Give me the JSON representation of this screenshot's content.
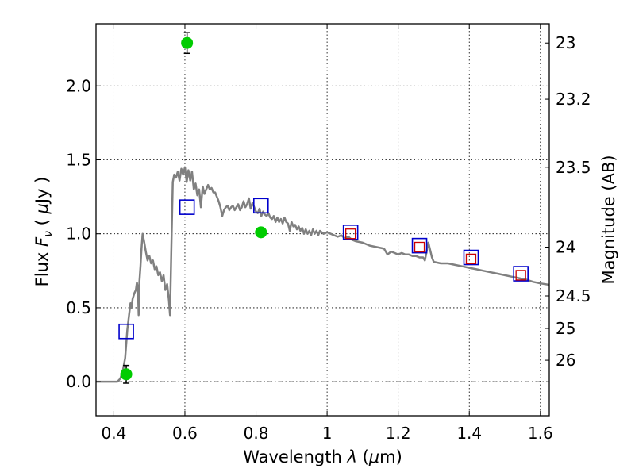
{
  "chart_data": {
    "type": "scatter",
    "xlabel": "Wavelength  λ (μm)",
    "ylabel": "Flux  F_ν  ( μJy )",
    "ylabel_parts": {
      "pre": "Flux  ",
      "f": "F",
      "nu": "ν",
      "mid": "  ( ",
      "mu": "μ",
      "post": "Jy )"
    },
    "xlabel_parts": {
      "pre": "Wavelength  ",
      "lambda": "λ",
      "mid": " (",
      "mu": "μ",
      "post": "m)"
    },
    "y2label": "Magnitude (AB)",
    "xlim": [
      0.35,
      1.625
    ],
    "ylim": [
      -0.23,
      2.42
    ],
    "xticks": [
      0.4,
      0.6,
      0.8,
      1.0,
      1.2,
      1.4,
      1.6
    ],
    "xtick_labels": [
      "0.4",
      "0.6",
      "0.8",
      "1",
      "1.2",
      "1.4",
      "1.6"
    ],
    "yticks": [
      0.0,
      0.5,
      1.0,
      1.5,
      2.0
    ],
    "ytick_labels": [
      "0.0",
      "0.5",
      "1.0",
      "1.5",
      "2.0"
    ],
    "mag_ticks": [
      {
        "label": "23",
        "flux": 2.29
      },
      {
        "label": "23.2",
        "flux": 1.91
      },
      {
        "label": "23.5",
        "flux": 1.45
      },
      {
        "label": "24",
        "flux": 0.91
      },
      {
        "label": "24.5",
        "flux": 0.58
      },
      {
        "label": "25",
        "flux": 0.36
      },
      {
        "label": "26",
        "flux": 0.145
      }
    ],
    "grid": true,
    "zero_line": true,
    "model_sed": {
      "name": "",
      "color": "#808080",
      "points": [
        [
          0.35,
          0.0
        ],
        [
          0.41,
          0.0
        ],
        [
          0.418,
          0.02
        ],
        [
          0.425,
          0.07
        ],
        [
          0.432,
          0.16
        ],
        [
          0.438,
          0.35
        ],
        [
          0.443,
          0.45
        ],
        [
          0.447,
          0.53
        ],
        [
          0.45,
          0.5
        ],
        [
          0.453,
          0.56
        ],
        [
          0.458,
          0.6
        ],
        [
          0.462,
          0.62
        ],
        [
          0.465,
          0.67
        ],
        [
          0.468,
          0.63
        ],
        [
          0.47,
          0.45
        ],
        [
          0.472,
          0.67
        ],
        [
          0.475,
          0.78
        ],
        [
          0.478,
          0.9
        ],
        [
          0.481,
          1.0
        ],
        [
          0.485,
          0.95
        ],
        [
          0.49,
          0.88
        ],
        [
          0.495,
          0.82
        ],
        [
          0.5,
          0.85
        ],
        [
          0.505,
          0.8
        ],
        [
          0.51,
          0.82
        ],
        [
          0.515,
          0.76
        ],
        [
          0.52,
          0.78
        ],
        [
          0.525,
          0.72
        ],
        [
          0.53,
          0.74
        ],
        [
          0.535,
          0.68
        ],
        [
          0.54,
          0.72
        ],
        [
          0.545,
          0.62
        ],
        [
          0.55,
          0.66
        ],
        [
          0.555,
          0.55
        ],
        [
          0.558,
          0.45
        ],
        [
          0.562,
          0.9
        ],
        [
          0.566,
          1.35
        ],
        [
          0.57,
          1.4
        ],
        [
          0.575,
          1.38
        ],
        [
          0.58,
          1.42
        ],
        [
          0.585,
          1.36
        ],
        [
          0.59,
          1.44
        ],
        [
          0.595,
          1.4
        ],
        [
          0.6,
          1.45
        ],
        [
          0.605,
          1.35
        ],
        [
          0.61,
          1.43
        ],
        [
          0.615,
          1.36
        ],
        [
          0.62,
          1.42
        ],
        [
          0.625,
          1.3
        ],
        [
          0.63,
          1.34
        ],
        [
          0.635,
          1.26
        ],
        [
          0.64,
          1.3
        ],
        [
          0.645,
          1.18
        ],
        [
          0.65,
          1.32
        ],
        [
          0.655,
          1.27
        ],
        [
          0.66,
          1.3
        ],
        [
          0.665,
          1.33
        ],
        [
          0.67,
          1.3
        ],
        [
          0.675,
          1.31
        ],
        [
          0.68,
          1.28
        ],
        [
          0.685,
          1.28
        ],
        [
          0.69,
          1.25
        ],
        [
          0.695,
          1.22
        ],
        [
          0.7,
          1.18
        ],
        [
          0.705,
          1.12
        ],
        [
          0.71,
          1.16
        ],
        [
          0.715,
          1.18
        ],
        [
          0.72,
          1.19
        ],
        [
          0.725,
          1.16
        ],
        [
          0.73,
          1.18
        ],
        [
          0.735,
          1.19
        ],
        [
          0.74,
          1.16
        ],
        [
          0.745,
          1.18
        ],
        [
          0.75,
          1.2
        ],
        [
          0.755,
          1.16
        ],
        [
          0.76,
          1.18
        ],
        [
          0.765,
          1.22
        ],
        [
          0.77,
          1.18
        ],
        [
          0.775,
          1.2
        ],
        [
          0.78,
          1.24
        ],
        [
          0.785,
          1.17
        ],
        [
          0.79,
          1.21
        ],
        [
          0.795,
          1.18
        ],
        [
          0.8,
          1.15
        ],
        [
          0.805,
          1.14
        ],
        [
          0.81,
          1.17
        ],
        [
          0.815,
          1.12
        ],
        [
          0.82,
          1.15
        ],
        [
          0.825,
          1.13
        ],
        [
          0.83,
          1.12
        ],
        [
          0.835,
          1.14
        ],
        [
          0.84,
          1.11
        ],
        [
          0.845,
          1.1
        ],
        [
          0.85,
          1.12
        ],
        [
          0.855,
          1.08
        ],
        [
          0.86,
          1.11
        ],
        [
          0.865,
          1.08
        ],
        [
          0.87,
          1.1
        ],
        [
          0.875,
          1.07
        ],
        [
          0.88,
          1.11
        ],
        [
          0.885,
          1.08
        ],
        [
          0.89,
          1.07
        ],
        [
          0.895,
          1.02
        ],
        [
          0.9,
          1.08
        ],
        [
          0.905,
          1.05
        ],
        [
          0.91,
          1.06
        ],
        [
          0.915,
          1.03
        ],
        [
          0.92,
          1.05
        ],
        [
          0.925,
          1.02
        ],
        [
          0.93,
          1.04
        ],
        [
          0.935,
          1.0
        ],
        [
          0.94,
          1.03
        ],
        [
          0.945,
          1.0
        ],
        [
          0.95,
          1.02
        ],
        [
          0.955,
          0.99
        ],
        [
          0.96,
          1.03
        ],
        [
          0.965,
          1.0
        ],
        [
          0.97,
          1.02
        ],
        [
          0.975,
          0.99
        ],
        [
          0.98,
          1.02
        ],
        [
          0.99,
          1.0
        ],
        [
          1.0,
          1.01
        ],
        [
          1.01,
          1.0
        ],
        [
          1.02,
          0.99
        ],
        [
          1.03,
          0.98
        ],
        [
          1.04,
          0.99
        ],
        [
          1.05,
          0.97
        ],
        [
          1.06,
          0.98
        ],
        [
          1.07,
          0.96
        ],
        [
          1.08,
          0.95
        ],
        [
          1.1,
          0.94
        ],
        [
          1.12,
          0.92
        ],
        [
          1.14,
          0.91
        ],
        [
          1.16,
          0.9
        ],
        [
          1.17,
          0.86
        ],
        [
          1.18,
          0.88
        ],
        [
          1.19,
          0.87
        ],
        [
          1.2,
          0.86
        ],
        [
          1.21,
          0.87
        ],
        [
          1.22,
          0.86
        ],
        [
          1.23,
          0.86
        ],
        [
          1.24,
          0.85
        ],
        [
          1.25,
          0.85
        ],
        [
          1.26,
          0.84
        ],
        [
          1.27,
          0.84
        ],
        [
          1.275,
          0.82
        ],
        [
          1.285,
          0.94
        ],
        [
          1.295,
          0.84
        ],
        [
          1.3,
          0.81
        ],
        [
          1.32,
          0.8
        ],
        [
          1.34,
          0.8
        ],
        [
          1.36,
          0.79
        ],
        [
          1.38,
          0.78
        ],
        [
          1.4,
          0.77
        ],
        [
          1.42,
          0.76
        ],
        [
          1.44,
          0.75
        ],
        [
          1.46,
          0.74
        ],
        [
          1.48,
          0.73
        ],
        [
          1.5,
          0.72
        ],
        [
          1.52,
          0.71
        ],
        [
          1.54,
          0.7
        ],
        [
          1.56,
          0.69
        ],
        [
          1.58,
          0.675
        ],
        [
          1.6,
          0.665
        ],
        [
          1.625,
          0.655
        ]
      ]
    },
    "series": [
      {
        "name": "",
        "marker": "circle",
        "color": "#00cc00",
        "x": [
          0.435,
          0.606,
          0.814
        ],
        "y": [
          0.05,
          2.29,
          1.01
        ],
        "yerr": [
          0.06,
          0.07,
          0.025
        ]
      },
      {
        "name": "",
        "marker": "open-square",
        "color": "#0000cc",
        "x": [
          0.435,
          0.606,
          0.814,
          1.066,
          1.26,
          1.405,
          1.545
        ],
        "y": [
          0.34,
          1.18,
          1.19,
          1.01,
          0.92,
          0.84,
          0.73
        ]
      },
      {
        "name": "",
        "marker": "open-square-small",
        "color": "#cc0000",
        "x": [
          1.066,
          1.26,
          1.405,
          1.545
        ],
        "y": [
          1.0,
          0.91,
          0.83,
          0.72
        ]
      }
    ]
  }
}
